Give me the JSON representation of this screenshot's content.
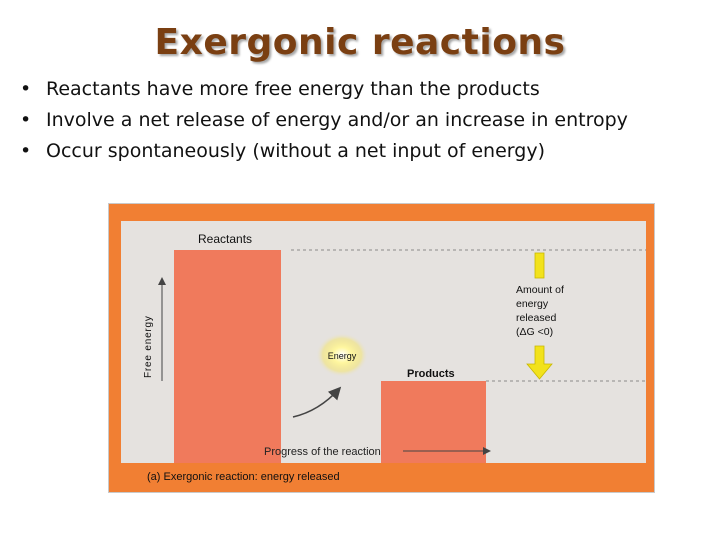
{
  "slide": {
    "title": "Exergonic reactions",
    "bullets": [
      "Reactants have more free energy than the products",
      "Involve a net release of energy and/or an increase in entropy",
      "Occur spontaneously (without a net input of energy)"
    ],
    "bullet_symbol": "•"
  },
  "diagram": {
    "reactants_label": "Reactants",
    "products_label": "Products",
    "y_axis_label": "Free energy",
    "x_axis_label": "Progress of the reaction",
    "energy_label": "Energy",
    "released_label_lines": [
      "Amount of",
      "energy",
      "released",
      "(ΔG <0)"
    ],
    "caption": "(a) Exergonic reaction: energy released",
    "colors": {
      "frame": "#f17f33",
      "plot_bg": "#e5e2df",
      "bars": "#f07a5c",
      "arrow": "#f2e21c",
      "title": "#7a3f12"
    }
  }
}
